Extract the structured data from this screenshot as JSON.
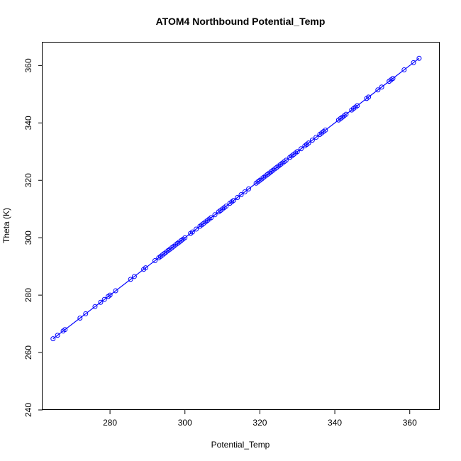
{
  "chart_data": {
    "type": "scatter",
    "title": "ATOM4 Northbound Potential_Temp",
    "xlabel": "Potential_Temp",
    "ylabel": "Theta (K)",
    "xlim": [
      262,
      368
    ],
    "ylim": [
      240,
      368
    ],
    "xticks": [
      280,
      300,
      320,
      340,
      360
    ],
    "yticks": [
      240,
      260,
      280,
      300,
      320,
      340,
      360
    ],
    "grid": false,
    "legend": "none",
    "color": "#0000ff",
    "series": [
      {
        "style": "line+points",
        "x": [
          264.8,
          266.0,
          267.5,
          268.0,
          272.0,
          273.5,
          276.0,
          277.5,
          278.5,
          279.5,
          280.0,
          281.5,
          285.5,
          286.5,
          289.0,
          289.5,
          292.0,
          293.0,
          293.5,
          294.0,
          294.5,
          295.0,
          295.5,
          296.0,
          296.5,
          297.0,
          297.5,
          298.0,
          298.5,
          299.0,
          299.5,
          300.0,
          301.5,
          302.0,
          303.0,
          304.0,
          304.5,
          305.0,
          305.5,
          306.0,
          306.5,
          307.0,
          308.0,
          309.0,
          309.5,
          310.0,
          310.5,
          311.0,
          312.0,
          312.5,
          313.0,
          314.0,
          315.0,
          316.0,
          317.0,
          319.0,
          319.5,
          320.0,
          320.5,
          321.0,
          321.5,
          322.0,
          322.5,
          323.0,
          323.5,
          324.0,
          324.5,
          325.0,
          325.5,
          326.0,
          326.5,
          327.0,
          328.0,
          328.5,
          329.0,
          329.5,
          330.0,
          331.0,
          332.0,
          332.5,
          333.0,
          334.0,
          335.0,
          336.0,
          336.5,
          337.0,
          337.5,
          341.0,
          341.5,
          342.0,
          342.5,
          343.0,
          344.5,
          345.0,
          345.5,
          346.0,
          348.5,
          349.0,
          351.5,
          352.5,
          354.5,
          355.0,
          355.5,
          358.5,
          361.0,
          362.5
        ],
        "y": [
          264.8,
          266.0,
          267.5,
          268.0,
          272.0,
          273.5,
          276.0,
          277.5,
          278.5,
          279.5,
          280.0,
          281.5,
          285.5,
          286.5,
          289.0,
          289.5,
          292.0,
          293.0,
          293.5,
          294.0,
          294.5,
          295.0,
          295.5,
          296.0,
          296.5,
          297.0,
          297.5,
          298.0,
          298.5,
          299.0,
          299.5,
          300.0,
          301.5,
          302.0,
          303.0,
          304.0,
          304.5,
          305.0,
          305.5,
          306.0,
          306.5,
          307.0,
          308.0,
          309.0,
          309.5,
          310.0,
          310.5,
          311.0,
          312.0,
          312.5,
          313.0,
          314.0,
          315.0,
          316.0,
          317.0,
          319.0,
          319.5,
          320.0,
          320.5,
          321.0,
          321.5,
          322.0,
          322.5,
          323.0,
          323.5,
          324.0,
          324.5,
          325.0,
          325.5,
          326.0,
          326.5,
          327.0,
          328.0,
          328.5,
          329.0,
          329.5,
          330.0,
          331.0,
          332.0,
          332.5,
          333.0,
          334.0,
          335.0,
          336.0,
          336.5,
          337.0,
          337.5,
          341.0,
          341.5,
          342.0,
          342.5,
          343.0,
          344.5,
          345.0,
          345.5,
          346.0,
          348.5,
          349.0,
          351.5,
          352.5,
          354.5,
          355.0,
          355.5,
          358.5,
          361.0,
          362.5
        ]
      }
    ]
  }
}
